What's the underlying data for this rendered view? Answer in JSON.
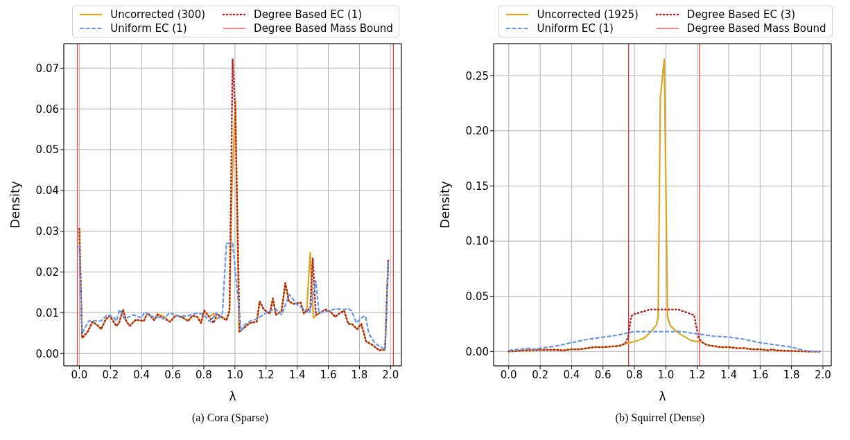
{
  "chart_data": [
    {
      "type": "line",
      "title": "(a) Cora (Sparse)",
      "xlabel": "λ",
      "ylabel": "Density",
      "legend": "top",
      "grid": true,
      "xlim": [
        -0.1,
        2.07
      ],
      "ylim": [
        -0.003,
        0.076
      ],
      "xticks": [
        {
          "value": 0,
          "label": "0.0"
        },
        {
          "value": 0.2,
          "label": "0.2"
        },
        {
          "value": 0.4,
          "label": "0.4"
        },
        {
          "value": 0.6,
          "label": "0.6"
        },
        {
          "value": 0.8,
          "label": "0.8"
        },
        {
          "value": 1,
          "label": "1.0"
        },
        {
          "value": 1.2,
          "label": "1.2"
        },
        {
          "value": 1.4,
          "label": "1.4"
        },
        {
          "value": 1.6,
          "label": "1.6"
        },
        {
          "value": 1.8,
          "label": "1.8"
        },
        {
          "value": 2,
          "label": "2.0"
        }
      ],
      "yticks": [
        {
          "value": 0,
          "label": "0.00"
        },
        {
          "value": 0.01,
          "label": "0.01"
        },
        {
          "value": 0.02,
          "label": "0.02"
        },
        {
          "value": 0.03,
          "label": "0.03"
        },
        {
          "value": 0.04,
          "label": "0.04"
        },
        {
          "value": 0.05,
          "label": "0.05"
        },
        {
          "value": 0.06,
          "label": "0.06"
        },
        {
          "value": 0.07,
          "label": "0.07"
        }
      ],
      "ref_lines": [
        {
          "axis": "x",
          "value": -0.012,
          "label": "Degree Based Mass Bound",
          "color": "#ff0000"
        },
        {
          "axis": "x",
          "value": 2.018,
          "color": "#ff0000"
        }
      ],
      "series": [
        {
          "name": "Uncorrected (300)",
          "color": "#daa520",
          "line_style": "solid",
          "x": [
            0,
            0.018,
            0.056,
            0.084,
            0.115,
            0.14,
            0.171,
            0.197,
            0.237,
            0.255,
            0.281,
            0.301,
            0.324,
            0.362,
            0.415,
            0.438,
            0.481,
            0.502,
            0.537,
            0.583,
            0.621,
            0.667,
            0.698,
            0.728,
            0.759,
            0.782,
            0.802,
            0.835,
            0.863,
            0.885,
            0.911,
            0.945,
            0.965,
            0.98,
            1.003,
            1.026,
            1.064,
            1.095,
            1.14,
            1.159,
            1.186,
            1.224,
            1.244,
            1.263,
            1.3,
            1.324,
            1.347,
            1.377,
            1.423,
            1.443,
            1.461,
            1.484,
            1.504,
            1.537,
            1.583,
            1.614,
            1.644,
            1.675,
            1.702,
            1.728,
            1.751,
            1.785,
            1.812,
            1.843,
            1.889,
            1.927,
            1.965,
            1.985
          ],
          "values": [
            0.0306,
            0.0038,
            0.0055,
            0.0078,
            0.007,
            0.006,
            0.0085,
            0.0092,
            0.0068,
            0.0075,
            0.0108,
            0.008,
            0.0068,
            0.0083,
            0.008,
            0.01,
            0.0082,
            0.0098,
            0.0092,
            0.0078,
            0.0094,
            0.0088,
            0.008,
            0.0093,
            0.009,
            0.0075,
            0.0106,
            0.009,
            0.0098,
            0.0085,
            0.0092,
            0.0082,
            0.0105,
            0.04,
            0.062,
            0.0052,
            0.0065,
            0.0075,
            0.0078,
            0.0128,
            0.0108,
            0.0098,
            0.0135,
            0.0095,
            0.0105,
            0.0173,
            0.0128,
            0.0122,
            0.0125,
            0.0098,
            0.0105,
            0.0248,
            0.0088,
            0.0098,
            0.0108,
            0.0103,
            0.009,
            0.01,
            0.0105,
            0.0073,
            0.0073,
            0.006,
            0.0073,
            0.003,
            0.002,
            0.0008,
            0.001,
            0.0228
          ]
        },
        {
          "name": "Uniform EC (1)",
          "color": "#6495ed",
          "line_style": "dashed",
          "x": [
            0,
            0.018,
            0.06,
            0.1,
            0.14,
            0.18,
            0.22,
            0.237,
            0.26,
            0.29,
            0.32,
            0.35,
            0.4,
            0.42,
            0.46,
            0.5,
            0.54,
            0.58,
            0.62,
            0.66,
            0.7,
            0.76,
            0.8,
            0.84,
            0.88,
            0.9,
            0.92,
            0.945,
            0.985,
            1.04,
            1.06,
            1.1,
            1.14,
            1.2,
            1.26,
            1.3,
            1.35,
            1.4,
            1.44,
            1.48,
            1.52,
            1.54,
            1.6,
            1.65,
            1.7,
            1.73,
            1.75,
            1.78,
            1.82,
            1.84,
            1.86,
            1.9,
            1.965,
            1.985
          ],
          "values": [
            0.0266,
            0.005,
            0.008,
            0.008,
            0.008,
            0.0095,
            0.009,
            0.008,
            0.0108,
            0.0085,
            0.009,
            0.0095,
            0.0088,
            0.0103,
            0.0092,
            0.009,
            0.0085,
            0.01,
            0.0093,
            0.0092,
            0.0093,
            0.01,
            0.0095,
            0.0078,
            0.01,
            0.0088,
            0.01,
            0.027,
            0.027,
            0.0055,
            0.007,
            0.008,
            0.0085,
            0.01,
            0.011,
            0.0095,
            0.0145,
            0.012,
            0.011,
            0.01,
            0.0178,
            0.01,
            0.0105,
            0.011,
            0.0108,
            0.011,
            0.0105,
            0.0075,
            0.009,
            0.0092,
            0.005,
            0.0025,
            0.001,
            0.0225
          ]
        },
        {
          "name": "Degree Based EC (1)",
          "color": "#b22222",
          "line_style": "dotted",
          "x": [
            0,
            0.018,
            0.056,
            0.084,
            0.115,
            0.14,
            0.171,
            0.197,
            0.237,
            0.255,
            0.281,
            0.301,
            0.324,
            0.362,
            0.415,
            0.438,
            0.481,
            0.502,
            0.537,
            0.583,
            0.621,
            0.667,
            0.698,
            0.728,
            0.759,
            0.782,
            0.802,
            0.835,
            0.863,
            0.885,
            0.911,
            0.945,
            0.965,
            0.985,
            1.003,
            1.03,
            1.064,
            1.095,
            1.14,
            1.159,
            1.186,
            1.224,
            1.244,
            1.263,
            1.3,
            1.324,
            1.347,
            1.377,
            1.423,
            1.443,
            1.461,
            1.484,
            1.5,
            1.52,
            1.583,
            1.614,
            1.644,
            1.675,
            1.702,
            1.728,
            1.751,
            1.785,
            1.812,
            1.843,
            1.889,
            1.927,
            1.965,
            1.985
          ],
          "values": [
            0.0306,
            0.0038,
            0.0055,
            0.0078,
            0.007,
            0.006,
            0.0085,
            0.0092,
            0.0068,
            0.0075,
            0.0108,
            0.008,
            0.0068,
            0.0083,
            0.008,
            0.01,
            0.0082,
            0.0095,
            0.0088,
            0.0078,
            0.0094,
            0.0088,
            0.008,
            0.0093,
            0.009,
            0.0075,
            0.0106,
            0.009,
            0.0075,
            0.0098,
            0.009,
            0.0082,
            0.0105,
            0.0723,
            0.059,
            0.0055,
            0.0065,
            0.0075,
            0.0078,
            0.0128,
            0.0108,
            0.0098,
            0.0135,
            0.0095,
            0.0105,
            0.0173,
            0.0128,
            0.0122,
            0.0125,
            0.0098,
            0.0105,
            0.0112,
            0.0235,
            0.0095,
            0.0108,
            0.0103,
            0.009,
            0.01,
            0.0105,
            0.0073,
            0.0073,
            0.006,
            0.0073,
            0.003,
            0.002,
            0.0008,
            0.001,
            0.0228
          ]
        }
      ]
    },
    {
      "type": "line",
      "title": "(b) Squirrel (Dense)",
      "xlabel": "λ",
      "ylabel": "Density",
      "legend": "top",
      "grid": true,
      "xlim": [
        -0.096,
        2.053
      ],
      "ylim": [
        -0.013,
        0.279
      ],
      "xticks": [
        {
          "value": 0,
          "label": "0.0"
        },
        {
          "value": 0.2,
          "label": "0.2"
        },
        {
          "value": 0.4,
          "label": "0.4"
        },
        {
          "value": 0.6,
          "label": "0.6"
        },
        {
          "value": 0.8,
          "label": "0.8"
        },
        {
          "value": 1,
          "label": "1.0"
        },
        {
          "value": 1.2,
          "label": "1.2"
        },
        {
          "value": 1.4,
          "label": "1.4"
        },
        {
          "value": 1.6,
          "label": "1.6"
        },
        {
          "value": 1.8,
          "label": "1.8"
        },
        {
          "value": 2,
          "label": "2.0"
        }
      ],
      "yticks": [
        {
          "value": 0,
          "label": "0.00"
        },
        {
          "value": 0.05,
          "label": "0.05"
        },
        {
          "value": 0.1,
          "label": "0.10"
        },
        {
          "value": 0.15,
          "label": "0.15"
        },
        {
          "value": 0.2,
          "label": "0.20"
        },
        {
          "value": 0.25,
          "label": "0.25"
        }
      ],
      "ref_lines": [
        {
          "axis": "x",
          "value": 0.763,
          "label": "Degree Based Mass Bound",
          "color": "#ff0000"
        },
        {
          "axis": "x",
          "value": 1.214,
          "color": "#ff0000"
        }
      ],
      "series": [
        {
          "name": "Uncorrected (1925)",
          "color": "#daa520",
          "line_style": "solid",
          "x": [
            0,
            0.1,
            0.2,
            0.3,
            0.35,
            0.4,
            0.45,
            0.5,
            0.55,
            0.6,
            0.7,
            0.74,
            0.8,
            0.86,
            0.9,
            0.94,
            0.951,
            0.965,
            0.99,
            1.011,
            1.03,
            1.07,
            1.1,
            1.16,
            1.2,
            1.23,
            1.26,
            1.3,
            1.35,
            1.4,
            1.45,
            1.5,
            1.55,
            1.6,
            1.65,
            1.68,
            1.7,
            1.8,
            1.9,
            1.98
          ],
          "values": [
            0,
            0.001,
            0.0015,
            0.0015,
            0.001,
            0.002,
            0.002,
            0.003,
            0.004,
            0.004,
            0.005,
            0.007,
            0.009,
            0.012,
            0.017,
            0.024,
            0.031,
            0.23,
            0.265,
            0.031,
            0.023,
            0.018,
            0.015,
            0.01,
            0.009,
            0.0085,
            0.006,
            0.005,
            0.004,
            0.004,
            0.003,
            0.003,
            0.002,
            0.002,
            0.001,
            0.002,
            0.001,
            0.0005,
            0,
            0
          ]
        },
        {
          "name": "Uniform EC (1)",
          "color": "#6495ed",
          "line_style": "dashed",
          "x": [
            0,
            0.1,
            0.14,
            0.16,
            0.2,
            0.3,
            0.4,
            0.5,
            0.6,
            0.7,
            0.76,
            0.8,
            1,
            1.1,
            1.2,
            1.3,
            1.4,
            1.5,
            1.6,
            1.7,
            1.8,
            1.85,
            1.9,
            1.98
          ],
          "values": [
            0.001,
            0.0025,
            0.003,
            0.002,
            0.003,
            0.005,
            0.008,
            0.011,
            0.013,
            0.015,
            0.017,
            0.018,
            0.018,
            0.018,
            0.016,
            0.014,
            0.013,
            0.011,
            0.008,
            0.006,
            0.004,
            0.002,
            0.0005,
            0
          ]
        },
        {
          "name": "Degree Based EC (3)",
          "color": "#b22222",
          "line_style": "dotted",
          "x": [
            0,
            0.1,
            0.2,
            0.3,
            0.35,
            0.4,
            0.45,
            0.5,
            0.55,
            0.6,
            0.7,
            0.74,
            0.76,
            0.78,
            0.8,
            0.85,
            0.9,
            1,
            1.08,
            1.12,
            1.18,
            1.19,
            1.21,
            1.23,
            1.26,
            1.3,
            1.35,
            1.4,
            1.45,
            1.5,
            1.55,
            1.6,
            1.65,
            1.68,
            1.7,
            1.8,
            1.9,
            1.98
          ],
          "values": [
            0,
            0.001,
            0.0015,
            0.0015,
            0.001,
            0.002,
            0.002,
            0.003,
            0.004,
            0.004,
            0.005,
            0.007,
            0.013,
            0.032,
            0.034,
            0.036,
            0.038,
            0.038,
            0.038,
            0.036,
            0.033,
            0.025,
            0.012,
            0.0085,
            0.006,
            0.005,
            0.004,
            0.004,
            0.003,
            0.003,
            0.002,
            0.002,
            0.001,
            0.002,
            0.001,
            0.0005,
            0,
            0
          ]
        }
      ]
    }
  ]
}
